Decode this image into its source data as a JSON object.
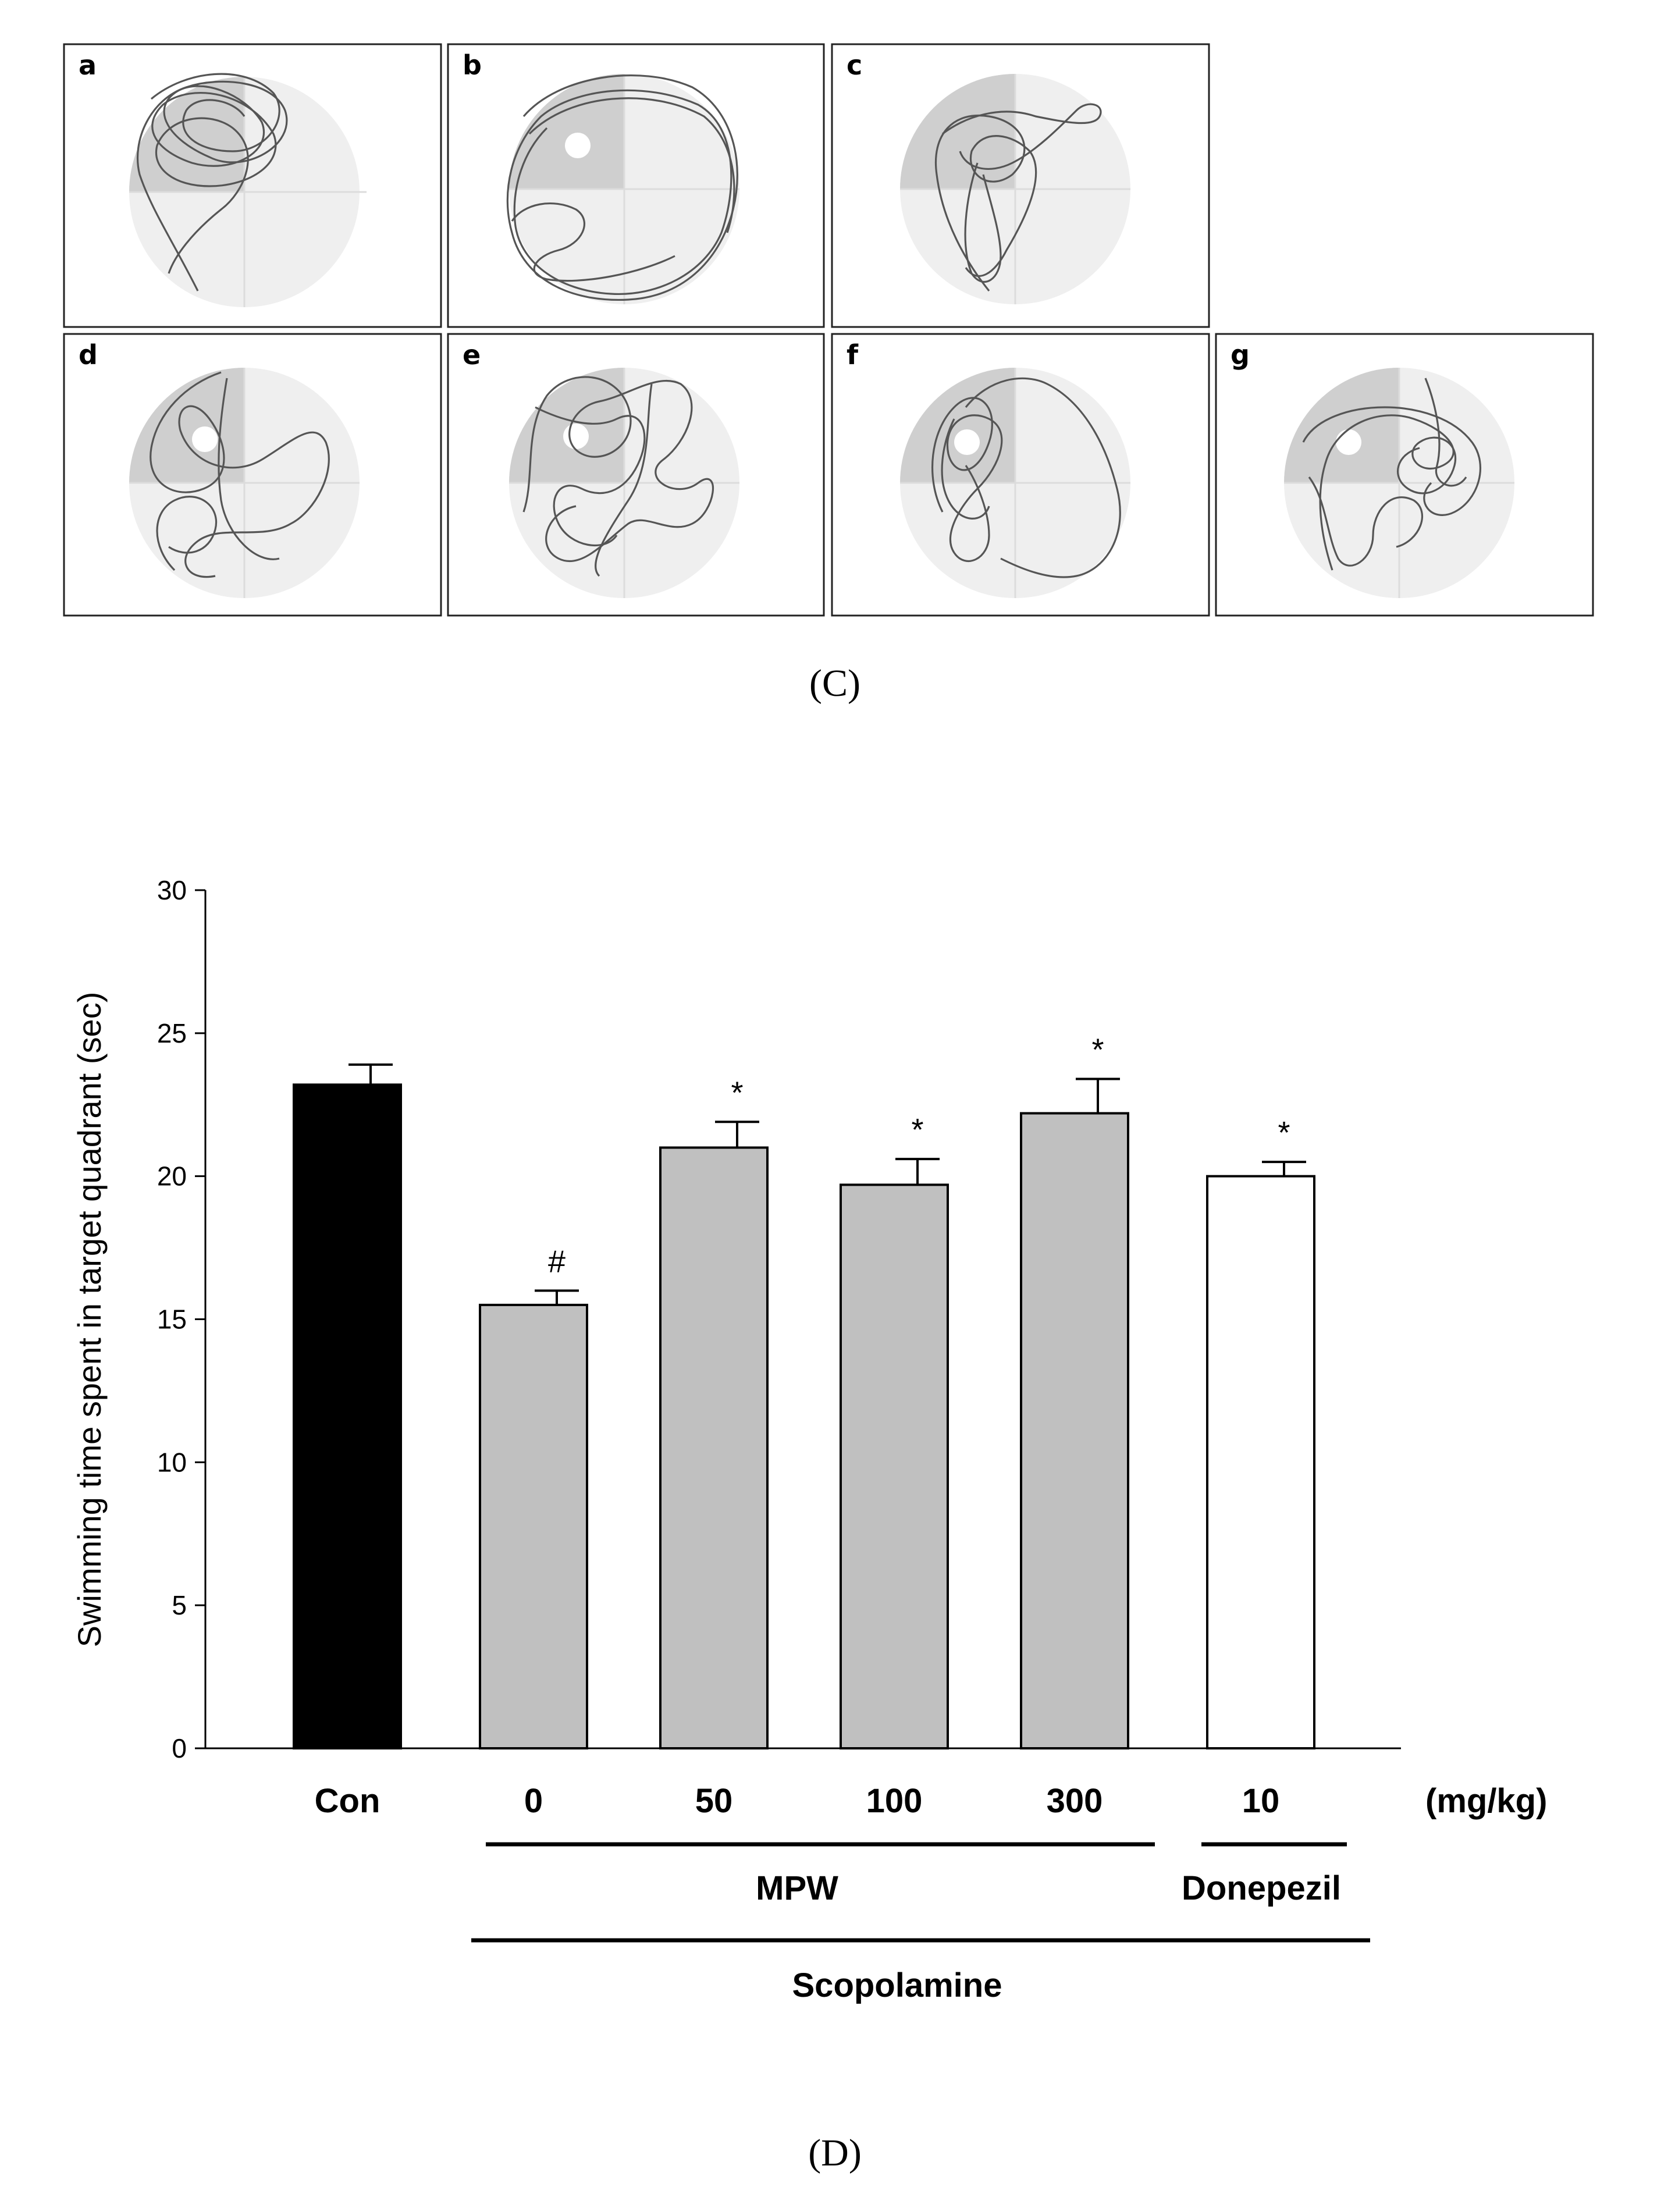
{
  "figure": {
    "panel_c": {
      "caption": "(C)",
      "panels": [
        {
          "label": "a"
        },
        {
          "label": "b"
        },
        {
          "label": "c"
        },
        {
          "label": "d"
        },
        {
          "label": "e"
        },
        {
          "label": "f"
        },
        {
          "label": "g"
        }
      ]
    },
    "panel_d": {
      "caption": "(D)"
    }
  },
  "chart_data": {
    "type": "bar",
    "ylabel": "Swimming time spent in target quadrant (sec)",
    "xlabel": "",
    "ylim": [
      0,
      30
    ],
    "yticks": [
      "0",
      "5",
      "10",
      "15",
      "20",
      "25",
      "30"
    ],
    "categories": [
      "Con",
      "0",
      "50",
      "100",
      "300",
      "10"
    ],
    "values": [
      23.2,
      15.5,
      21.0,
      19.7,
      22.2,
      20.0
    ],
    "errors": [
      0.7,
      0.5,
      0.9,
      0.9,
      1.2,
      0.5
    ],
    "annotations": [
      "",
      "#",
      "*",
      "*",
      "*",
      "*"
    ],
    "colors": [
      "#000000",
      "#c0c0c0",
      "#c0c0c0",
      "#c0c0c0",
      "#c0c0c0",
      "#ffffff"
    ],
    "unit_label": "(mg/kg)",
    "groups": {
      "mpw": "MPW",
      "donepezil": "Donepezil",
      "scopolamine": "Scopolamine"
    }
  }
}
